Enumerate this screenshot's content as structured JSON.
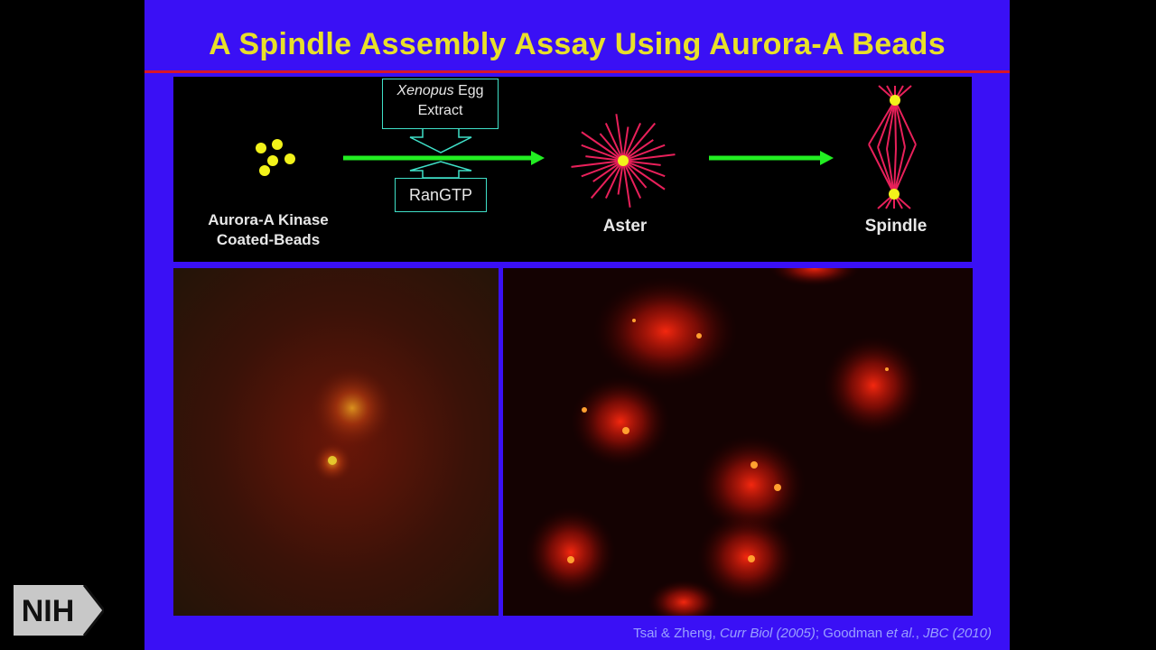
{
  "slide": {
    "title": "A Spindle Assembly Assay Using Aurora-A Beads",
    "colors": {
      "background": "#3a10f5",
      "title": "#e8e02a",
      "rule": "#d8162a",
      "arrow": "#22ee22",
      "bead": "#f2f21a",
      "microtubule": "#e8205a"
    }
  },
  "diagram": {
    "beads_label_line1": "Aurora-A Kinase",
    "beads_label_line2": "Coated-Beads",
    "extract_label_italic": "Xenopus",
    "extract_label_rest": " Egg",
    "extract_label_line2": "Extract",
    "rangtp_label": "RanGTP",
    "aster_label": "Aster",
    "spindle_label": "Spindle"
  },
  "credit": {
    "part1": "Tsai & Zheng, ",
    "journal1": "Curr Biol (2005)",
    "part2": "; Goodman ",
    "etal": "et al.",
    "part3": ", ",
    "journal2": "JBC (2010)"
  },
  "logo": {
    "text": "NIH"
  }
}
